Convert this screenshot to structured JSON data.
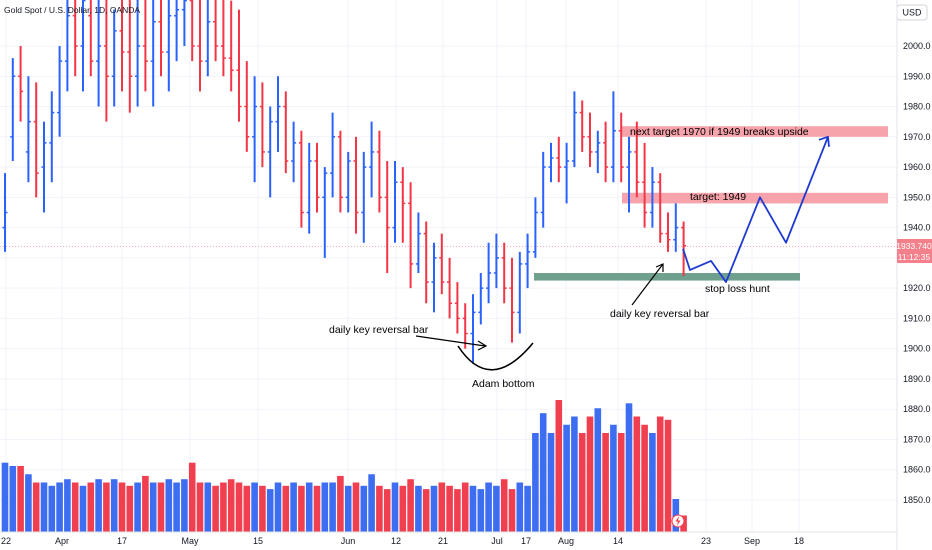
{
  "header": {
    "symbol_title": "Gold Spot / U.S. Dollar, 1D, OANDA",
    "currency_button": "USD"
  },
  "price_tag": {
    "price": "1933.740",
    "countdown": "11:12:35"
  },
  "colors": {
    "up": "#2962ff",
    "down": "#f23645",
    "volume_up": "#3d6df0",
    "volume_down": "#f04050",
    "zone_red": "#f7a3ab",
    "zone_green": "#6fa08e",
    "path": "#1e3ad0",
    "grid": "#f0f3fa"
  },
  "chart_data": {
    "type": "bar",
    "title": "Gold Spot / U.S. Dollar, 1D, OANDA",
    "currency": "USD",
    "last_price": 1933.74,
    "y_range": [
      1840,
      2017
    ],
    "y_ticks": [
      1850,
      1860,
      1870,
      1880,
      1890,
      1900,
      1910,
      1920,
      1930,
      1940,
      1950,
      1960,
      1970,
      1980,
      1990,
      2000
    ],
    "x_labels": [
      "22",
      "Apr",
      "17",
      "May",
      "15",
      "Jun",
      "12",
      "21",
      "Jul",
      "17",
      "Aug",
      "14",
      "23",
      "Sep",
      "18"
    ],
    "ohlc": [
      {
        "o": 1940,
        "h": 1958,
        "l": 1932,
        "c": 1945
      },
      {
        "o": 1970,
        "h": 1996,
        "l": 1962,
        "c": 1990
      },
      {
        "o": 1990,
        "h": 2000,
        "l": 1975,
        "c": 1985
      },
      {
        "o": 1965,
        "h": 1990,
        "l": 1955,
        "c": 1975
      },
      {
        "o": 1975,
        "h": 1988,
        "l": 1950,
        "c": 1958
      },
      {
        "o": 1960,
        "h": 1975,
        "l": 1945,
        "c": 1968
      },
      {
        "o": 1968,
        "h": 1985,
        "l": 1955,
        "c": 1978
      },
      {
        "o": 1978,
        "h": 2000,
        "l": 1970,
        "c": 1995
      },
      {
        "o": 1995,
        "h": 2017,
        "l": 1985,
        "c": 2010
      },
      {
        "o": 2010,
        "h": 2017,
        "l": 1990,
        "c": 2000
      },
      {
        "o": 2000,
        "h": 2017,
        "l": 1985,
        "c": 2015
      },
      {
        "o": 2010,
        "h": 2017,
        "l": 1990,
        "c": 1995
      },
      {
        "o": 1995,
        "h": 2017,
        "l": 1980,
        "c": 2000
      },
      {
        "o": 2000,
        "h": 2017,
        "l": 1975,
        "c": 1990
      },
      {
        "o": 1990,
        "h": 2012,
        "l": 1980,
        "c": 2005
      },
      {
        "o": 2005,
        "h": 2017,
        "l": 1985,
        "c": 1998
      },
      {
        "o": 1998,
        "h": 2017,
        "l": 1978,
        "c": 1990
      },
      {
        "o": 1990,
        "h": 2017,
        "l": 1980,
        "c": 2000
      },
      {
        "o": 2000,
        "h": 2017,
        "l": 1985,
        "c": 1995
      },
      {
        "o": 1995,
        "h": 2017,
        "l": 1980,
        "c": 2008
      },
      {
        "o": 2008,
        "h": 2017,
        "l": 1990,
        "c": 1998
      },
      {
        "o": 1998,
        "h": 2017,
        "l": 1985,
        "c": 2010
      },
      {
        "o": 2010,
        "h": 2017,
        "l": 1995,
        "c": 2012
      },
      {
        "o": 2012,
        "h": 2017,
        "l": 2000,
        "c": 2015
      },
      {
        "o": 2015,
        "h": 2017,
        "l": 1995,
        "c": 2000
      },
      {
        "o": 2000,
        "h": 2017,
        "l": 1985,
        "c": 1995
      },
      {
        "o": 1995,
        "h": 2017,
        "l": 1990,
        "c": 2008
      },
      {
        "o": 2008,
        "h": 2017,
        "l": 1995,
        "c": 2000
      },
      {
        "o": 2000,
        "h": 2017,
        "l": 1990,
        "c": 1996
      },
      {
        "o": 1996,
        "h": 2015,
        "l": 1985,
        "c": 1992
      },
      {
        "o": 1992,
        "h": 2012,
        "l": 1975,
        "c": 1980
      },
      {
        "o": 1980,
        "h": 1995,
        "l": 1965,
        "c": 1970
      },
      {
        "o": 1970,
        "h": 1990,
        "l": 1955,
        "c": 1980
      },
      {
        "o": 1980,
        "h": 1988,
        "l": 1960,
        "c": 1965
      },
      {
        "o": 1965,
        "h": 1980,
        "l": 1950,
        "c": 1975
      },
      {
        "o": 1975,
        "h": 1990,
        "l": 1965,
        "c": 1980
      },
      {
        "o": 1980,
        "h": 1985,
        "l": 1958,
        "c": 1962
      },
      {
        "o": 1962,
        "h": 1975,
        "l": 1955,
        "c": 1968
      },
      {
        "o": 1968,
        "h": 1972,
        "l": 1940,
        "c": 1945
      },
      {
        "o": 1945,
        "h": 1968,
        "l": 1938,
        "c": 1962
      },
      {
        "o": 1962,
        "h": 1968,
        "l": 1945,
        "c": 1950
      },
      {
        "o": 1950,
        "h": 1960,
        "l": 1930,
        "c": 1958
      },
      {
        "o": 1958,
        "h": 1978,
        "l": 1950,
        "c": 1970
      },
      {
        "o": 1970,
        "h": 1972,
        "l": 1945,
        "c": 1950
      },
      {
        "o": 1950,
        "h": 1965,
        "l": 1945,
        "c": 1962
      },
      {
        "o": 1962,
        "h": 1970,
        "l": 1938,
        "c": 1945
      },
      {
        "o": 1945,
        "h": 1965,
        "l": 1935,
        "c": 1960
      },
      {
        "o": 1960,
        "h": 1975,
        "l": 1950,
        "c": 1965
      },
      {
        "o": 1965,
        "h": 1972,
        "l": 1945,
        "c": 1950
      },
      {
        "o": 1950,
        "h": 1962,
        "l": 1925,
        "c": 1940
      },
      {
        "o": 1940,
        "h": 1962,
        "l": 1935,
        "c": 1955
      },
      {
        "o": 1955,
        "h": 1960,
        "l": 1935,
        "c": 1948
      },
      {
        "o": 1948,
        "h": 1955,
        "l": 1920,
        "c": 1928
      },
      {
        "o": 1928,
        "h": 1945,
        "l": 1925,
        "c": 1938
      },
      {
        "o": 1938,
        "h": 1942,
        "l": 1915,
        "c": 1922
      },
      {
        "o": 1922,
        "h": 1935,
        "l": 1912,
        "c": 1930
      },
      {
        "o": 1930,
        "h": 1938,
        "l": 1918,
        "c": 1922
      },
      {
        "o": 1922,
        "h": 1930,
        "l": 1910,
        "c": 1915
      },
      {
        "o": 1915,
        "h": 1922,
        "l": 1905,
        "c": 1910
      },
      {
        "o": 1910,
        "h": 1915,
        "l": 1900,
        "c": 1905
      },
      {
        "o": 1905,
        "h": 1918,
        "l": 1895,
        "c": 1912
      },
      {
        "o": 1912,
        "h": 1925,
        "l": 1908,
        "c": 1920
      },
      {
        "o": 1920,
        "h": 1935,
        "l": 1915,
        "c": 1925
      },
      {
        "o": 1925,
        "h": 1938,
        "l": 1920,
        "c": 1930
      },
      {
        "o": 1930,
        "h": 1935,
        "l": 1915,
        "c": 1920
      },
      {
        "o": 1920,
        "h": 1930,
        "l": 1902,
        "c": 1912
      },
      {
        "o": 1912,
        "h": 1932,
        "l": 1905,
        "c": 1928
      },
      {
        "o": 1928,
        "h": 1938,
        "l": 1920,
        "c": 1932
      },
      {
        "o": 1932,
        "h": 1950,
        "l": 1930,
        "c": 1945
      },
      {
        "o": 1945,
        "h": 1965,
        "l": 1940,
        "c": 1960
      },
      {
        "o": 1960,
        "h": 1968,
        "l": 1955,
        "c": 1963
      },
      {
        "o": 1963,
        "h": 1970,
        "l": 1955,
        "c": 1960
      },
      {
        "o": 1960,
        "h": 1968,
        "l": 1948,
        "c": 1962
      },
      {
        "o": 1962,
        "h": 1985,
        "l": 1960,
        "c": 1978
      },
      {
        "o": 1978,
        "h": 1982,
        "l": 1965,
        "c": 1970
      },
      {
        "o": 1970,
        "h": 1978,
        "l": 1960,
        "c": 1965
      },
      {
        "o": 1965,
        "h": 1972,
        "l": 1958,
        "c": 1968
      },
      {
        "o": 1968,
        "h": 1975,
        "l": 1955,
        "c": 1960
      },
      {
        "o": 1960,
        "h": 1985,
        "l": 1955,
        "c": 1972
      },
      {
        "o": 1972,
        "h": 1978,
        "l": 1955,
        "c": 1960
      },
      {
        "o": 1960,
        "h": 1970,
        "l": 1945,
        "c": 1965
      },
      {
        "o": 1965,
        "h": 1975,
        "l": 1950,
        "c": 1955
      },
      {
        "o": 1955,
        "h": 1968,
        "l": 1940,
        "c": 1945
      },
      {
        "o": 1945,
        "h": 1960,
        "l": 1940,
        "c": 1955
      },
      {
        "o": 1955,
        "h": 1958,
        "l": 1935,
        "c": 1938
      },
      {
        "o": 1938,
        "h": 1945,
        "l": 1932,
        "c": 1936
      },
      {
        "o": 1936,
        "h": 1948,
        "l": 1932,
        "c": 1940
      },
      {
        "o": 1940,
        "h": 1942,
        "l": 1924,
        "c": 1934
      }
    ],
    "volume": [
      42,
      40,
      40,
      35,
      30,
      30,
      28,
      30,
      32,
      30,
      28,
      30,
      32,
      30,
      32,
      30,
      28,
      30,
      34,
      30,
      30,
      32,
      30,
      32,
      42,
      30,
      30,
      28,
      30,
      32,
      30,
      28,
      30,
      28,
      26,
      30,
      28,
      30,
      28,
      30,
      28,
      30,
      30,
      34,
      28,
      30,
      28,
      35,
      28,
      26,
      30,
      28,
      32,
      28,
      26,
      28,
      30,
      28,
      26,
      30,
      28,
      26,
      30,
      28,
      32,
      26,
      30,
      28,
      60,
      72,
      60,
      80,
      65,
      70,
      60,
      70,
      75,
      60,
      65,
      60,
      78,
      70,
      65,
      60,
      70,
      68,
      20,
      10
    ],
    "zones": [
      {
        "label": "next target 1970 if 1949 breaks upside",
        "low": 1970,
        "high": 1973.5
      },
      {
        "label": "target: 1949",
        "low": 1948,
        "high": 1951.5
      }
    ],
    "stop_zone": {
      "label": "stop loss hunt",
      "low": 1922.5,
      "high": 1925
    },
    "annotations": [
      {
        "text": "daily key reversal bar"
      },
      {
        "text": "Adam bottom"
      },
      {
        "text": "daily key reversal bar"
      }
    ],
    "projected_path_prices": [
      1933,
      1926,
      1929,
      1922,
      1950,
      1935,
      1970
    ]
  }
}
